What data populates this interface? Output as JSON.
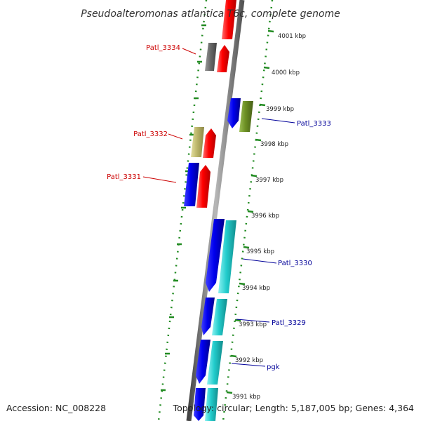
{
  "title": "Pseudoalteromonas atlantica T6c, complete genome",
  "footer": {
    "accession": "Accession: NC_008228",
    "topology": "Topology: circular; Length: 5,187,005 bp; Genes: 4,364"
  },
  "colors": {
    "red": "#ff0000",
    "blue": "#0000ee",
    "cyan": "#22cccc",
    "olive": "#6b8e23",
    "khaki": "#bdb76b",
    "gray": "#6a6a6a",
    "ruler": "#228b22",
    "backbone": "#888888",
    "label_forward": "#cc0000",
    "label_reverse": "#000099"
  },
  "ticks": [
    "4001 kbp",
    "4000 kbp",
    "3999 kbp",
    "3998 kbp",
    "3997 kbp",
    "3996 kbp",
    "3995 kbp",
    "3994 kbp",
    "3993 kbp",
    "3992 kbp",
    "3991 kbp"
  ],
  "gene_labels": [
    {
      "text": "Patl_3334",
      "strand": "forward"
    },
    {
      "text": "Patl_3333",
      "strand": "reverse"
    },
    {
      "text": "Patl_3332",
      "strand": "forward"
    },
    {
      "text": "Patl_3331",
      "strand": "forward"
    },
    {
      "text": "Patl_3330",
      "strand": "reverse"
    },
    {
      "text": "Patl_3329",
      "strand": "reverse"
    },
    {
      "text": "pgk",
      "strand": "reverse"
    }
  ]
}
